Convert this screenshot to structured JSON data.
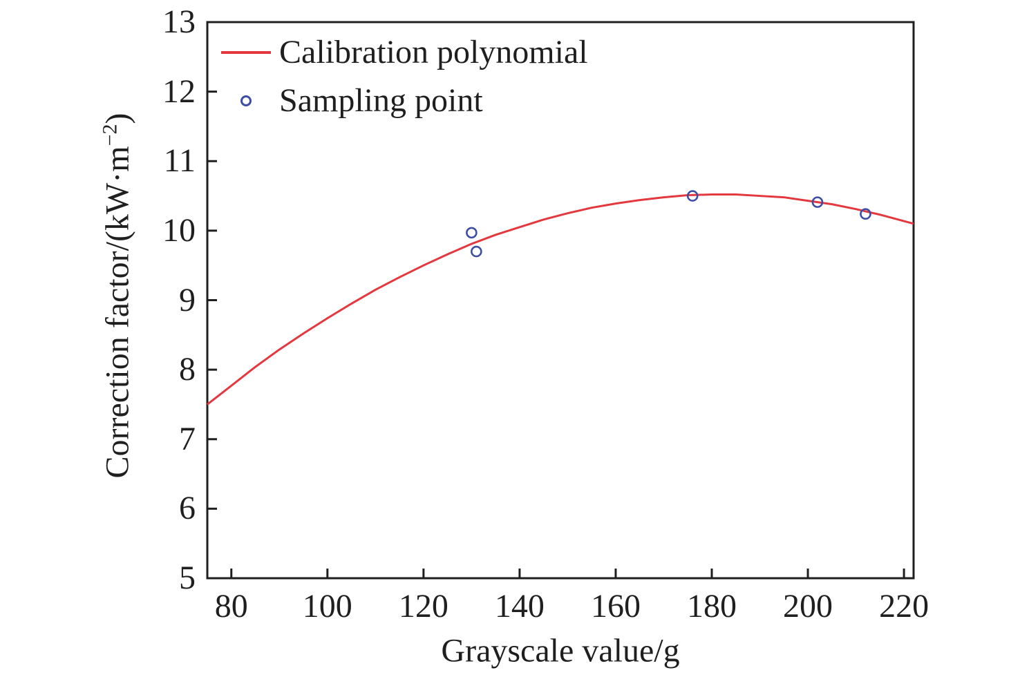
{
  "chart_data": {
    "type": "line+scatter",
    "title": "",
    "xlabel": "Grayscale value/g",
    "ylabel": "Correction factor/(kW·m⁻²)",
    "ylabel_parts": {
      "pre": "Correction factor/(kW·m",
      "sup": "−2",
      "post": ")"
    },
    "xlim": [
      75,
      222
    ],
    "ylim": [
      5,
      13
    ],
    "x_ticks": [
      80,
      100,
      120,
      140,
      160,
      180,
      200,
      220
    ],
    "y_ticks": [
      13,
      12,
      11,
      10,
      9,
      8,
      7,
      6,
      5
    ],
    "grid": false,
    "legend_position": "top-left",
    "colors": {
      "line": "#e3383e",
      "marker": "#3c4da6",
      "axis": "#1f1f1f",
      "background": "#ffffff"
    },
    "legend": {
      "entries": [
        {
          "label": "Calibration polynomial",
          "marker": "line",
          "color": "#e3383e"
        },
        {
          "label": "Sampling point",
          "marker": "open-circle",
          "color": "#3c4da6"
        }
      ]
    },
    "series": [
      {
        "name": "Calibration polynomial",
        "type": "line",
        "color": "#e3383e",
        "points": [
          [
            75,
            7.5
          ],
          [
            80,
            7.77
          ],
          [
            85,
            8.04
          ],
          [
            90,
            8.29
          ],
          [
            95,
            8.52
          ],
          [
            100,
            8.74
          ],
          [
            105,
            8.95
          ],
          [
            110,
            9.15
          ],
          [
            115,
            9.33
          ],
          [
            120,
            9.5
          ],
          [
            125,
            9.66
          ],
          [
            130,
            9.81
          ],
          [
            135,
            9.94
          ],
          [
            140,
            10.05
          ],
          [
            145,
            10.16
          ],
          [
            150,
            10.25
          ],
          [
            155,
            10.33
          ],
          [
            160,
            10.39
          ],
          [
            165,
            10.44
          ],
          [
            170,
            10.48
          ],
          [
            175,
            10.51
          ],
          [
            180,
            10.52
          ],
          [
            185,
            10.52
          ],
          [
            190,
            10.5
          ],
          [
            195,
            10.48
          ],
          [
            200,
            10.43
          ],
          [
            205,
            10.38
          ],
          [
            210,
            10.31
          ],
          [
            215,
            10.23
          ],
          [
            222,
            10.1
          ]
        ]
      },
      {
        "name": "Sampling point",
        "type": "scatter",
        "color": "#3c4da6",
        "points": [
          [
            130,
            9.97
          ],
          [
            131,
            9.7
          ],
          [
            176,
            10.5
          ],
          [
            202,
            10.41
          ],
          [
            212,
            10.24
          ]
        ]
      }
    ]
  }
}
